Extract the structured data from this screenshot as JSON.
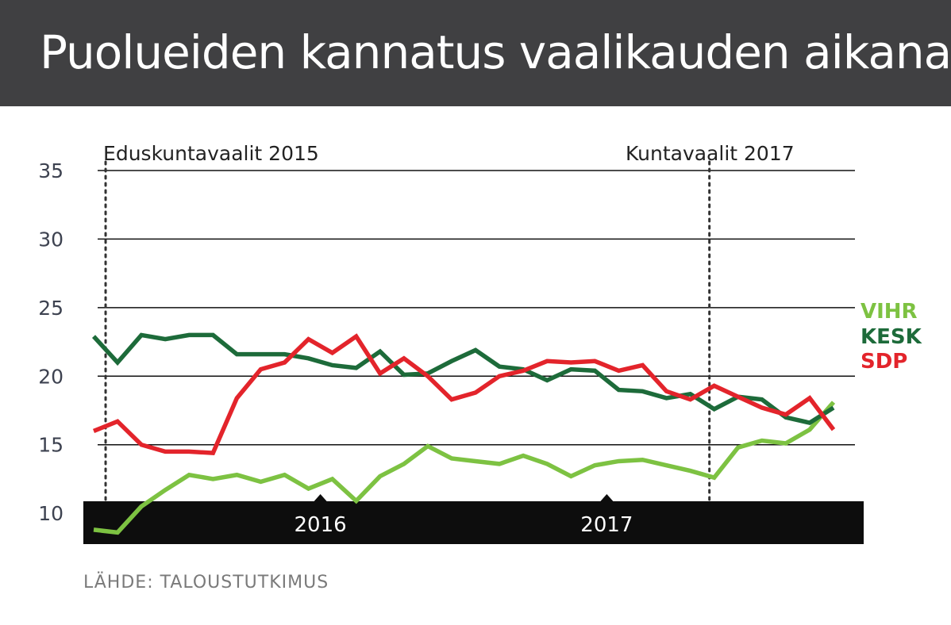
{
  "title": "Puolueiden kannatus vaalikauden aikana",
  "source": "LÄHDE: TALOUSTUTKIMUS",
  "colors": {
    "header_bg": "#404042",
    "VIHR": "#7dc242",
    "KESK": "#1d6b3a",
    "SDP": "#e3242b",
    "axis_band": "#0d0d0d"
  },
  "chart_data": {
    "type": "line",
    "title": "Puolueiden kannatus vaalikauden aikana",
    "ylim": [
      0,
      35
    ],
    "yticks": [
      5,
      10,
      15,
      20,
      25,
      30,
      35
    ],
    "grid": true,
    "x_index_range": [
      0,
      31
    ],
    "x_year_labels": [
      {
        "label": "2016",
        "x": 9.5
      },
      {
        "label": "2017",
        "x": 21.5
      }
    ],
    "events": [
      {
        "label": "Eduskuntavaalit 2015",
        "x": 0.5
      },
      {
        "label": "Kuntavaalit 2017",
        "x": 25.8
      }
    ],
    "legend_placement": "right",
    "series": [
      {
        "name": "VIHR",
        "color": "#7dc242",
        "values": [
          8.8,
          8.6,
          10.5,
          11.7,
          12.8,
          12.5,
          12.8,
          12.3,
          12.8,
          11.8,
          12.5,
          10.9,
          12.7,
          13.6,
          14.9,
          14.0,
          13.8,
          13.6,
          14.2,
          13.6,
          12.7,
          13.5,
          13.8,
          13.9,
          13.5,
          13.1,
          12.6,
          14.8,
          15.3,
          15.1,
          16.1,
          18.1
        ]
      },
      {
        "name": "KESK",
        "color": "#1d6b3a",
        "values": [
          22.9,
          21.0,
          23.0,
          22.7,
          23.0,
          23.0,
          21.6,
          21.6,
          21.6,
          21.3,
          20.8,
          20.6,
          21.8,
          20.1,
          20.2,
          21.1,
          21.9,
          20.7,
          20.5,
          19.7,
          20.5,
          20.4,
          19.0,
          18.9,
          18.4,
          18.7,
          17.6,
          18.5,
          18.3,
          17.0,
          16.6,
          17.7
        ]
      },
      {
        "name": "SDP",
        "color": "#e3242b",
        "values": [
          16.0,
          16.7,
          15.0,
          14.5,
          14.5,
          14.4,
          18.4,
          20.5,
          21.0,
          22.7,
          21.7,
          22.9,
          20.2,
          21.3,
          20.0,
          18.3,
          18.8,
          20.0,
          20.4,
          21.1,
          21.0,
          21.1,
          20.4,
          20.8,
          18.9,
          18.3,
          19.3,
          18.5,
          17.7,
          17.2,
          18.4,
          16.1
        ]
      }
    ]
  }
}
